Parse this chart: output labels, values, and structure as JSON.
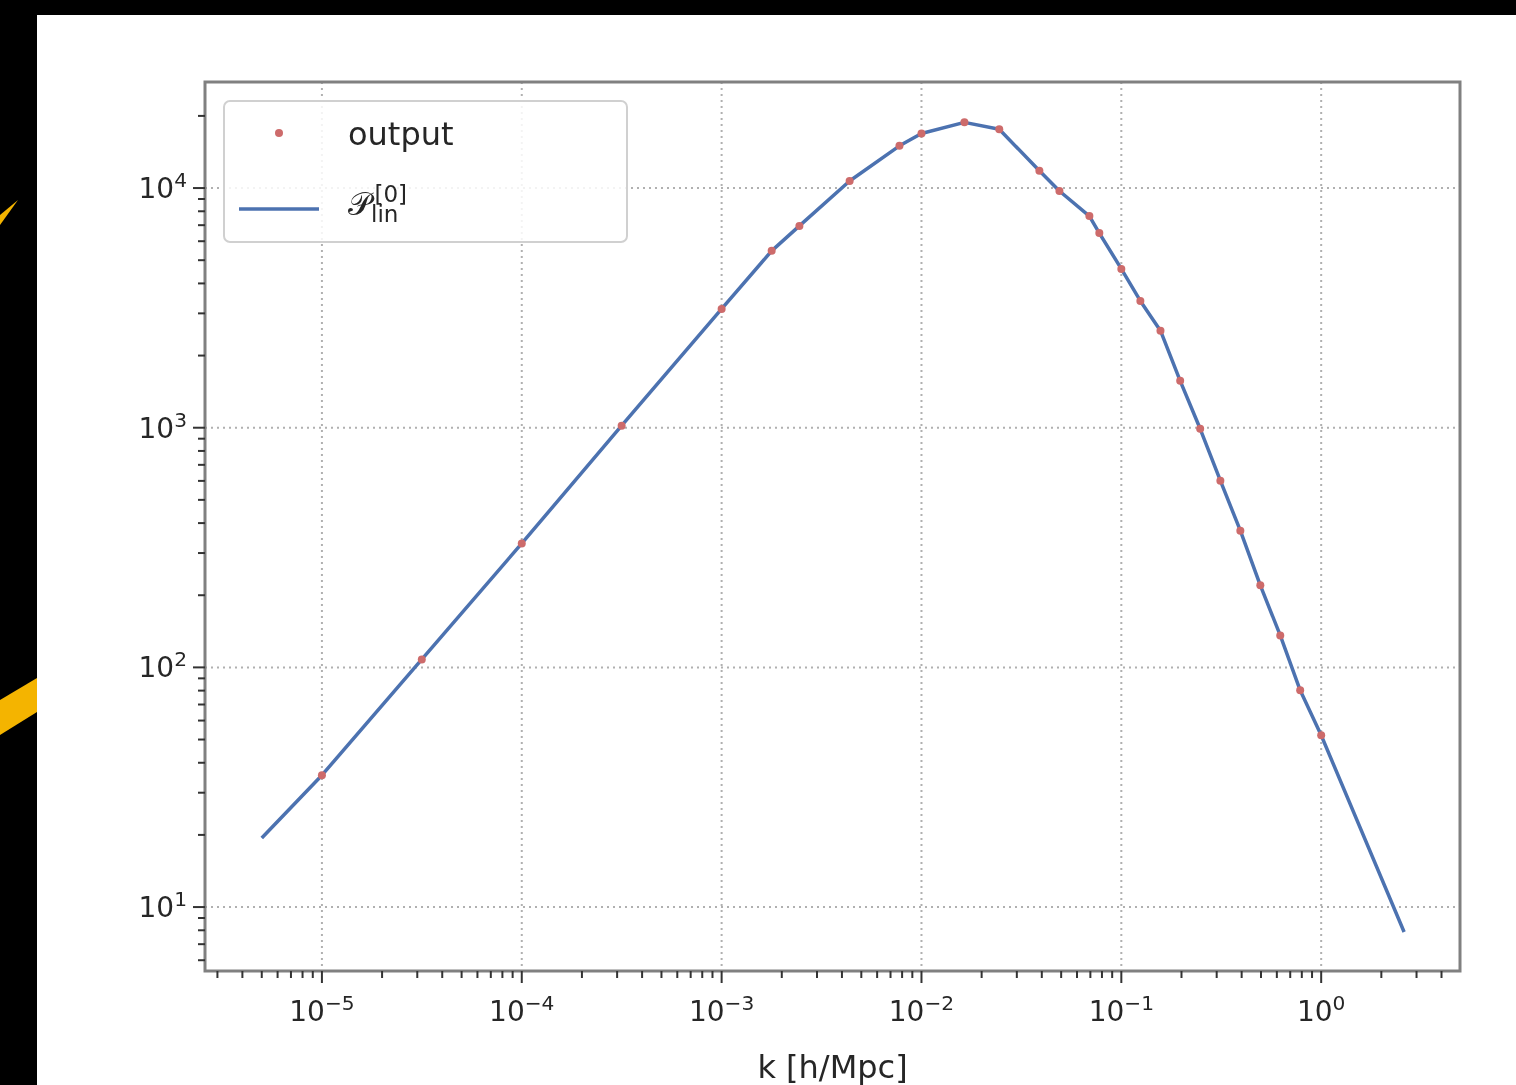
{
  "chart_data": {
    "type": "line",
    "xlabel": "k [h/Mpc]",
    "log": "xy",
    "grid": true,
    "legend": "top left",
    "xlim": [
      2.6e-06,
      4.95
    ],
    "ylim": [
      5.41,
      27700
    ],
    "xticks": [
      {
        "value": 3e-06,
        "label": null
      },
      {
        "value": 4e-06,
        "label": null
      },
      {
        "value": 5e-06,
        "label": null
      },
      {
        "value": 6e-06,
        "label": null
      },
      {
        "value": 7e-06,
        "label": null
      },
      {
        "value": 8e-06,
        "label": null
      },
      {
        "value": 9e-06,
        "label": null
      },
      {
        "value": 1e-05,
        "label": "10$^{−5}$"
      },
      {
        "value": 2e-05,
        "label": null
      },
      {
        "value": 3e-05,
        "label": null
      },
      {
        "value": 4e-05,
        "label": null
      },
      {
        "value": 5e-05,
        "label": null
      },
      {
        "value": 6e-05,
        "label": null
      },
      {
        "value": 7e-05,
        "label": null
      },
      {
        "value": 8e-05,
        "label": null
      },
      {
        "value": 9e-05,
        "label": null
      },
      {
        "value": 0.0001,
        "label": "10$^{−4}$"
      },
      {
        "value": 0.0002,
        "label": null
      },
      {
        "value": 0.0003,
        "label": null
      },
      {
        "value": 0.0004,
        "label": null
      },
      {
        "value": 0.0005,
        "label": null
      },
      {
        "value": 0.0006,
        "label": null
      },
      {
        "value": 0.0007,
        "label": null
      },
      {
        "value": 0.0008,
        "label": null
      },
      {
        "value": 0.0009,
        "label": null
      },
      {
        "value": 0.001,
        "label": "10$^{−3}$"
      },
      {
        "value": 0.002,
        "label": null
      },
      {
        "value": 0.003,
        "label": null
      },
      {
        "value": 0.004,
        "label": null
      },
      {
        "value": 0.005,
        "label": null
      },
      {
        "value": 0.006,
        "label": null
      },
      {
        "value": 0.007,
        "label": null
      },
      {
        "value": 0.008,
        "label": null
      },
      {
        "value": 0.009,
        "label": null
      },
      {
        "value": 0.01,
        "label": "10$^{−2}$"
      },
      {
        "value": 0.02,
        "label": null
      },
      {
        "value": 0.03,
        "label": null
      },
      {
        "value": 0.04,
        "label": null
      },
      {
        "value": 0.05,
        "label": null
      },
      {
        "value": 0.06,
        "label": null
      },
      {
        "value": 0.07,
        "label": null
      },
      {
        "value": 0.08,
        "label": null
      },
      {
        "value": 0.09,
        "label": null
      },
      {
        "value": 0.1,
        "label": "10$^{−1}$"
      },
      {
        "value": 0.2,
        "label": null
      },
      {
        "value": 0.3,
        "label": null
      },
      {
        "value": 0.4,
        "label": null
      },
      {
        "value": 0.5,
        "label": null
      },
      {
        "value": 0.6,
        "label": null
      },
      {
        "value": 0.7,
        "label": null
      },
      {
        "value": 0.8,
        "label": null
      },
      {
        "value": 0.9,
        "label": null
      },
      {
        "value": 1,
        "label": "10$^{0}$"
      },
      {
        "value": 2,
        "label": null
      },
      {
        "value": 3,
        "label": null
      },
      {
        "value": 4,
        "label": null
      }
    ],
    "yticks": [
      {
        "value": 6,
        "label": null
      },
      {
        "value": 7,
        "label": null
      },
      {
        "value": 8,
        "label": null
      },
      {
        "value": 9,
        "label": null
      },
      {
        "value": 10,
        "label": "10$^{1}$"
      },
      {
        "value": 20,
        "label": null
      },
      {
        "value": 30,
        "label": null
      },
      {
        "value": 40,
        "label": null
      },
      {
        "value": 50,
        "label": null
      },
      {
        "value": 60,
        "label": null
      },
      {
        "value": 70,
        "label": null
      },
      {
        "value": 80,
        "label": null
      },
      {
        "value": 90,
        "label": null
      },
      {
        "value": 100,
        "label": "10$^{2}$"
      },
      {
        "value": 200,
        "label": null
      },
      {
        "value": 300,
        "label": null
      },
      {
        "value": 400,
        "label": null
      },
      {
        "value": 500,
        "label": null
      },
      {
        "value": 600,
        "label": null
      },
      {
        "value": 700,
        "label": null
      },
      {
        "value": 800,
        "label": null
      },
      {
        "value": 900,
        "label": null
      },
      {
        "value": 1000,
        "label": "10$^{3}$"
      },
      {
        "value": 2000,
        "label": null
      },
      {
        "value": 3000,
        "label": null
      },
      {
        "value": 4000,
        "label": null
      },
      {
        "value": 5000,
        "label": null
      },
      {
        "value": 6000,
        "label": null
      },
      {
        "value": 7000,
        "label": null
      },
      {
        "value": 8000,
        "label": null
      },
      {
        "value": 9000,
        "label": null
      },
      {
        "value": 10000,
        "label": "10$^{4}$"
      },
      {
        "value": 20000,
        "label": null
      }
    ],
    "series": [
      {
        "name": "output",
        "type": "scatter",
        "marker": "circle",
        "color": "#cd6b6b",
        "x": [
          1e-05,
          3.16e-05,
          0.0001,
          0.000316,
          0.001,
          0.00178,
          0.00245,
          0.00437,
          0.00776,
          0.01,
          0.0164,
          0.0245,
          0.0389,
          0.049,
          0.0692,
          0.0776,
          0.1,
          0.1245,
          0.157,
          0.197,
          0.248,
          0.313,
          0.394,
          0.496,
          0.624,
          0.785,
          1.0
        ],
        "values": [
          35.5,
          108,
          329,
          1020,
          3130,
          5470,
          6950,
          10700,
          15000,
          16900,
          18800,
          17600,
          11800,
          9720,
          7640,
          6490,
          4600,
          3380,
          2540,
          1570,
          990,
          601,
          372,
          220,
          136,
          80.2,
          52.1
        ]
      },
      {
        "name": "𝒫$_{lin}$$^{[0]}$",
        "line_style": "solid",
        "color": "#4c72b0",
        "x": [
          5e-06,
          1e-05,
          3.16e-05,
          0.0001,
          0.000316,
          0.001,
          0.00178,
          0.00245,
          0.00437,
          0.00776,
          0.01,
          0.0164,
          0.0245,
          0.0389,
          0.049,
          0.0692,
          0.0776,
          0.1,
          0.1245,
          0.157,
          0.197,
          0.248,
          0.313,
          0.394,
          0.496,
          0.624,
          0.785,
          1.0,
          2.6
        ],
        "values": [
          19.4,
          35.5,
          108,
          329,
          1020,
          3130,
          5470,
          6950,
          10700,
          15000,
          16900,
          18800,
          17600,
          11800,
          9720,
          7640,
          6490,
          4600,
          3380,
          2540,
          1570,
          990,
          601,
          372,
          220,
          136,
          80.2,
          52.1,
          7.87
        ]
      }
    ]
  }
}
